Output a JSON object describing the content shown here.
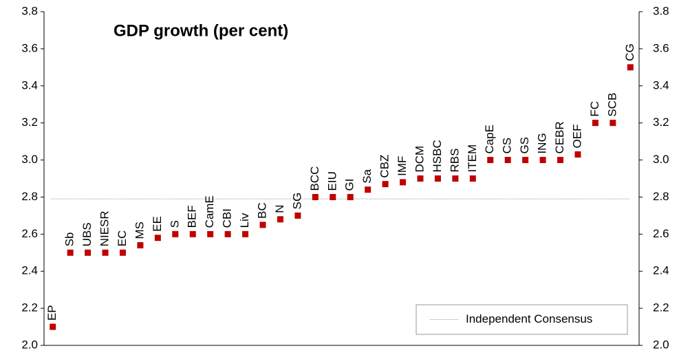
{
  "chart_data": {
    "type": "scatter",
    "title": "GDP growth (per cent)",
    "categories": [
      "EP",
      "Sb",
      "UBS",
      "NIESR",
      "EC",
      "MS",
      "EE",
      "S",
      "BEF",
      "CamE",
      "CBI",
      "Liv",
      "BC",
      "N",
      "SG",
      "BCC",
      "EIU",
      "GI",
      "Sa",
      "CBZ",
      "IMF",
      "DCM",
      "HSBC",
      "RBS",
      "ITEM",
      "CapE",
      "CS",
      "GS",
      "ING",
      "CEBR",
      "OEF",
      "FC",
      "SCB",
      "CG"
    ],
    "values": [
      2.1,
      2.5,
      2.5,
      2.5,
      2.5,
      2.54,
      2.58,
      2.6,
      2.6,
      2.6,
      2.6,
      2.6,
      2.65,
      2.68,
      2.7,
      2.8,
      2.8,
      2.8,
      2.84,
      2.87,
      2.88,
      2.9,
      2.9,
      2.9,
      2.9,
      3.0,
      3.0,
      3.0,
      3.0,
      3.0,
      3.03,
      3.2,
      3.2,
      3.5
    ],
    "color": "#c00000",
    "reference_line": {
      "label": "Independent Consensus",
      "value": 2.79,
      "color": "#a0a0a0"
    },
    "legend": "lower right",
    "ylim": [
      2.0,
      3.8
    ],
    "yticks": [
      {
        "value": 2.0,
        "label": "2.0"
      },
      2.2,
      2.4,
      2.6,
      2.8,
      {
        "value": 3.0,
        "label": "3.0"
      },
      3.2,
      3.4,
      3.6,
      3.8
    ],
    "y2lim": [
      2.0,
      3.8
    ],
    "y2ticks": [
      {
        "value": 2.0,
        "label": "2.0"
      },
      2.2,
      2.4,
      2.6,
      2.8,
      {
        "value": 3.0,
        "label": "3.0"
      },
      3.2,
      3.4,
      3.6,
      3.8
    ]
  }
}
